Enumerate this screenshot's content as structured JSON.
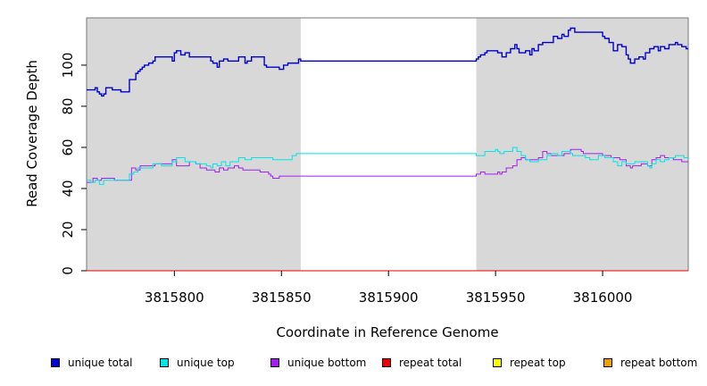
{
  "chart_data": {
    "type": "line",
    "title": "",
    "xlabel": "Coordinate in Reference Genome",
    "ylabel": "Read Coverage Depth",
    "xlim": [
      3815759,
      3816040
    ],
    "ylim": [
      0,
      123
    ],
    "xticks": [
      3815800,
      3815850,
      3815900,
      3815950,
      3816000
    ],
    "yticks": [
      0,
      20,
      40,
      60,
      80,
      100
    ],
    "shaded_regions": [
      [
        3815759,
        3815859
      ],
      [
        3815941,
        3816040
      ]
    ],
    "shade_color": "#d8d8d8",
    "legend_position": "bottom",
    "series": [
      {
        "name": "unique total",
        "color": "#0000cc",
        "x": [
          3815759,
          3815763,
          3815764,
          3815765,
          3815766,
          3815767,
          3815768,
          3815771,
          3815775,
          3815777,
          3815779,
          3815782,
          3815783,
          3815784,
          3815785,
          3815786,
          3815787,
          3815788,
          3815790,
          3815791,
          3815794,
          3815799,
          3815800,
          3815801,
          3815803,
          3815805,
          3815807,
          3815812,
          3815817,
          3815818,
          3815820,
          3815821,
          3815823,
          3815825,
          3815830,
          3815833,
          3815834,
          3815836,
          3815840,
          3815842,
          3815843,
          3815846,
          3815849,
          3815851,
          3815853,
          3815858,
          3815859,
          3815941,
          3815942,
          3815943,
          3815945,
          3815946,
          3815951,
          3815953,
          3815955,
          3815957,
          3815959,
          3815960,
          3815961,
          3815964,
          3815966,
          3815967,
          3815968,
          3815970,
          3815972,
          3815977,
          3815979,
          3815981,
          3815982,
          3815984,
          3815985,
          3815987,
          3816000,
          3816001,
          3816003,
          3816005,
          3816007,
          3816009,
          3816011,
          3816012,
          3816013,
          3816015,
          3816017,
          3816019,
          3816020,
          3816022,
          3816024,
          3816026,
          3816027,
          3816029,
          3816031,
          3816034,
          3816035,
          3816037,
          3816039
        ],
        "y": [
          88,
          89,
          87,
          86,
          85,
          86,
          89,
          88,
          87,
          87,
          93,
          96,
          97,
          98,
          99,
          100,
          100,
          101,
          102,
          104,
          104,
          102,
          106,
          107,
          105,
          106,
          104,
          104,
          102,
          101,
          99,
          102,
          103,
          102,
          104,
          101,
          102,
          104,
          104,
          100,
          99,
          99,
          98,
          100,
          101,
          103,
          102,
          103,
          104,
          105,
          106,
          107,
          106,
          104,
          106,
          108,
          110,
          108,
          106,
          107,
          105,
          108,
          107,
          110,
          111,
          114,
          113,
          115,
          114,
          117,
          118,
          116,
          114,
          113,
          111,
          107,
          110,
          109,
          105,
          103,
          101,
          103,
          104,
          103,
          106,
          108,
          109,
          107,
          109,
          108,
          110,
          111,
          110,
          109,
          108
        ]
      },
      {
        "name": "unique top",
        "color": "#00e5e5",
        "x": [
          3815759,
          3815761,
          3815763,
          3815765,
          3815767,
          3815771,
          3815778,
          3815779,
          3815781,
          3815783,
          3815790,
          3815794,
          3815799,
          3815801,
          3815805,
          3815810,
          3815815,
          3815817,
          3815818,
          3815820,
          3815822,
          3815824,
          3815826,
          3815830,
          3815833,
          3815836,
          3815840,
          3815842,
          3815846,
          3815852,
          3815855,
          3815857,
          3815941,
          3815945,
          3815947,
          3815950,
          3815951,
          3815952,
          3815954,
          3815958,
          3815960,
          3815962,
          3815964,
          3815966,
          3815970,
          3815974,
          3815976,
          3815979,
          3815981,
          3815985,
          3815986,
          3815989,
          3815992,
          3815994,
          3815998,
          3816001,
          3816005,
          3816007,
          3816009,
          3816011,
          3816015,
          3816018,
          3816021,
          3816022,
          3816023,
          3816025,
          3816027,
          3816029,
          3816031,
          3816034,
          3816038
        ],
        "y": [
          44,
          43,
          44,
          42,
          44,
          44,
          44,
          47,
          48,
          50,
          52,
          51,
          53,
          55,
          53,
          52,
          51,
          50,
          52,
          51,
          53,
          51,
          53,
          55,
          54,
          55,
          55,
          55,
          54,
          54,
          56,
          57,
          56,
          58,
          58,
          59,
          58,
          57,
          58,
          60,
          58,
          56,
          54,
          53,
          54,
          56,
          57,
          56,
          58,
          57,
          56,
          56,
          55,
          54,
          56,
          55,
          53,
          51,
          53,
          52,
          53,
          53,
          51,
          50,
          52,
          54,
          53,
          54,
          55,
          56,
          55
        ]
      },
      {
        "name": "unique bottom",
        "color": "#a020f0",
        "x": [
          3815759,
          3815762,
          3815764,
          3815766,
          3815772,
          3815780,
          3815782,
          3815784,
          3815791,
          3815792,
          3815799,
          3815801,
          3815807,
          3815810,
          3815812,
          3815815,
          3815817,
          3815819,
          3815821,
          3815823,
          3815825,
          3815828,
          3815830,
          3815832,
          3815835,
          3815840,
          3815844,
          3815845,
          3815846,
          3815849,
          3815854,
          3815941,
          3815943,
          3815945,
          3815950,
          3815951,
          3815952,
          3815953,
          3815955,
          3815958,
          3815960,
          3815962,
          3815964,
          3815970,
          3815972,
          3815974,
          3815976,
          3815979,
          3815982,
          3815985,
          3815990,
          3815991,
          3815996,
          3816000,
          3816004,
          3816008,
          3816011,
          3816013,
          3816014,
          3816016,
          3816018,
          3816021,
          3816023,
          3816025,
          3816027,
          3816029,
          3816031,
          3816033,
          3816037
        ],
        "y": [
          43,
          45,
          44,
          45,
          44,
          50,
          49,
          51,
          52,
          52,
          54,
          51,
          53,
          52,
          50,
          49,
          49,
          48,
          50,
          49,
          50,
          51,
          50,
          49,
          49,
          48,
          47,
          46,
          45,
          46,
          46,
          47,
          48,
          47,
          47,
          48,
          47,
          48,
          50,
          51,
          54,
          55,
          54,
          55,
          58,
          57,
          56,
          56,
          57,
          59,
          58,
          57,
          57,
          56,
          55,
          54,
          51,
          50,
          51,
          51,
          52,
          51,
          54,
          55,
          56,
          55,
          55,
          54,
          53
        ]
      },
      {
        "name": "repeat total",
        "color": "#ee0000",
        "x": [
          3815759,
          3816040
        ],
        "y": [
          0,
          0
        ]
      },
      {
        "name": "repeat top",
        "color": "#ffff00",
        "x": [
          3815759,
          3816040
        ],
        "y": [
          0,
          0
        ]
      },
      {
        "name": "repeat bottom",
        "color": "#f0a000",
        "x": [
          3815759,
          3816040
        ],
        "y": [
          0,
          0
        ]
      }
    ]
  }
}
